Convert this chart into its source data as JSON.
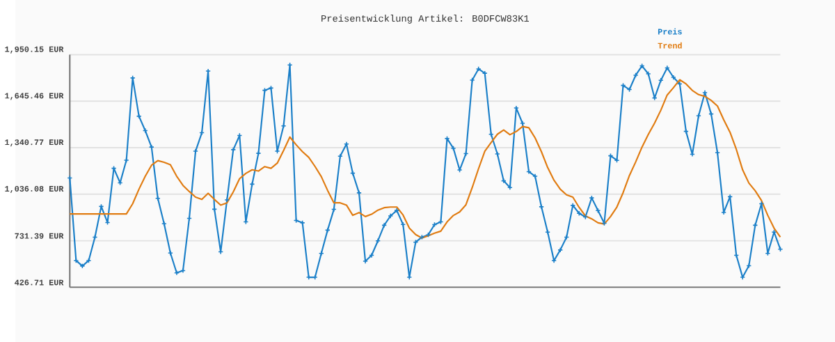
{
  "chart_data": {
    "type": "line",
    "title": "Preisentwicklung Artikel: B0DFCW83K1",
    "categories": [
      null,
      null,
      null,
      null,
      null,
      null,
      null,
      null,
      null,
      null,
      null,
      null,
      null,
      null,
      null,
      null,
      null,
      null,
      null,
      null,
      null,
      null,
      null,
      null,
      null,
      null,
      null,
      null,
      null,
      null,
      null,
      null,
      null,
      null,
      null,
      null,
      null,
      null,
      null,
      null,
      null,
      null,
      null,
      null,
      null,
      null,
      null,
      null,
      null,
      null,
      null,
      null,
      null,
      null,
      null,
      null,
      null,
      null,
      null,
      null,
      null,
      null,
      null,
      null,
      null,
      null,
      null,
      null,
      null,
      null,
      null,
      null,
      null,
      null,
      null,
      null,
      null,
      null,
      null,
      null,
      null,
      null,
      null,
      null,
      null,
      null,
      null,
      null,
      null,
      null,
      null,
      null,
      null,
      null,
      null,
      null,
      null,
      null,
      null,
      null,
      null,
      null,
      null,
      null,
      null,
      null,
      null,
      null,
      null,
      null,
      null,
      null,
      null,
      null
    ],
    "series": [
      {
        "name": "Preis",
        "color": "#1a7fc8",
        "marker": "cross",
        "values": [
          1143,
          601,
          566,
          601,
          755,
          956,
          851,
          1206,
          1111,
          1259,
          1798,
          1547,
          1453,
          1345,
          1009,
          843,
          651,
          521,
          536,
          878,
          1318,
          1439,
          1843,
          938,
          659,
          999,
          1328,
          1421,
          855,
          1102,
          1304,
          1717,
          1732,
          1318,
          1484,
          1883,
          864,
          849,
          492,
          492,
          649,
          801,
          937,
          1285,
          1365,
          1174,
          1045,
          597,
          636,
          731,
          833,
          894,
          930,
          838,
          492,
          722,
          755,
          770,
          837,
          855,
          1401,
          1337,
          1195,
          1302,
          1784,
          1857,
          1829,
          1429,
          1300,
          1124,
          1080,
          1601,
          1501,
          1184,
          1154,
          954,
          788,
          601,
          671,
          755,
          963,
          911,
          887,
          1012,
          929,
          846,
          1288,
          1258,
          1749,
          1722,
          1816,
          1877,
          1825,
          1667,
          1783,
          1864,
          1802,
          1759,
          1448,
          1298,
          1550,
          1702,
          1562,
          1308,
          917,
          1020,
          636,
          492,
          568,
          833,
          974,
          649,
          788,
          676
        ]
      },
      {
        "name": "Trend",
        "color": "#e07b10",
        "marker": "none",
        "values": [
          907,
          907,
          907,
          907,
          907,
          907,
          907,
          907,
          907,
          907,
          974,
          1069,
          1154,
          1226,
          1256,
          1245,
          1229,
          1154,
          1094,
          1054,
          1017,
          1002,
          1042,
          1002,
          965,
          980,
          1051,
          1138,
          1173,
          1196,
          1188,
          1217,
          1206,
          1240,
          1323,
          1411,
          1360,
          1315,
          1278,
          1218,
          1151,
          1061,
          980,
          980,
          965,
          898,
          916,
          890,
          905,
          932,
          948,
          952,
          952,
          900,
          814,
          772,
          749,
          764,
          781,
          794,
          855,
          897,
          920,
          967,
          1080,
          1203,
          1318,
          1375,
          1429,
          1457,
          1426,
          1447,
          1480,
          1472,
          1405,
          1315,
          1211,
          1128,
          1069,
          1032,
          1017,
          950,
          894,
          875,
          849,
          841,
          890,
          952,
          1047,
          1159,
          1248,
          1345,
          1428,
          1502,
          1587,
          1686,
          1734,
          1786,
          1759,
          1716,
          1689,
          1677,
          1651,
          1614,
          1524,
          1442,
          1330,
          1196,
          1109,
          1059,
          995,
          898,
          814,
          755
        ]
      }
    ],
    "ylim": [
      426.71,
      1950.15
    ],
    "yticks": [
      {
        "value": 426.71,
        "label": "426.71 EUR"
      },
      {
        "value": 731.39,
        "label": "731.39 EUR"
      },
      {
        "value": 1036.08,
        "label": "1,036.08 EUR"
      },
      {
        "value": 1340.77,
        "label": "1,340.77 EUR"
      },
      {
        "value": 1645.46,
        "label": "1,645.46 EUR"
      },
      {
        "value": 1950.15,
        "label": "1,950.15 EUR"
      }
    ],
    "grid": "y",
    "legend": "top right",
    "line_style": "solid"
  }
}
